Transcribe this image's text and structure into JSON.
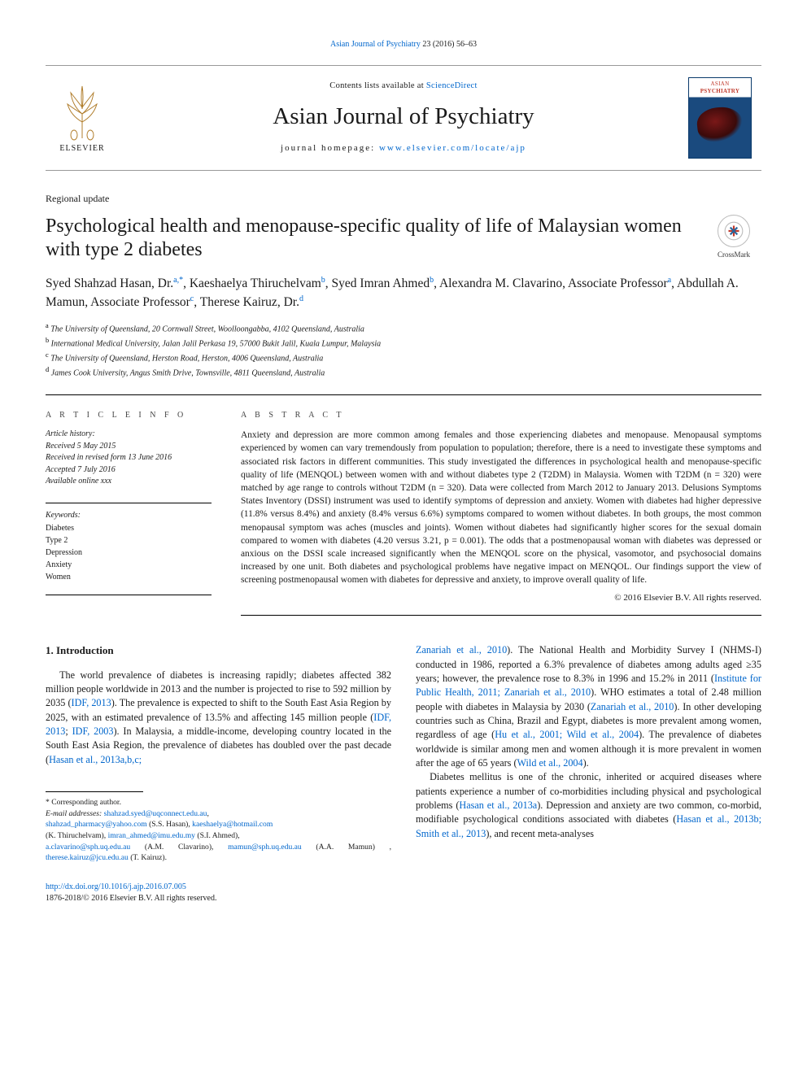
{
  "top_header_link": {
    "journal_short": "Asian Journal of Psychiatry",
    "ref": " 23 (2016) 56–63"
  },
  "masthead": {
    "contents_line_pre": "Contents lists available at ",
    "contents_link": "ScienceDirect",
    "journal_name": "Asian Journal of Psychiatry",
    "homepage_pre": "journal homepage: ",
    "homepage_link": "www.elsevier.com/locate/ajp",
    "elsevier_label": "ELSEVIER",
    "cover_brand": "ASIAN",
    "cover_brand2": "PSYCHIATRY"
  },
  "crossmark_label": "CrossMark",
  "section_label": "Regional update",
  "title": "Psychological health and menopause-specific quality of life of Malaysian women with type 2 diabetes",
  "authors_html": "Syed Shahzad Hasan, Dr.<sup>a,*</sup>, Kaeshaelya Thiruchelvam<sup>b</sup>, Syed Imran Ahmed<sup>b</sup>, Alexandra M. Clavarino, Associate Professor<sup>a</sup>, Abdullah A. Mamun, Associate Professor<sup>c</sup>, Therese Kairuz, Dr.<sup>d</sup>",
  "affiliations": [
    "a The University of Queensland, 20 Cornwall Street, Woolloongabba, 4102 Queensland, Australia",
    "b International Medical University, Jalan Jalil Perkasa 19, 57000 Bukit Jalil, Kuala Lumpur, Malaysia",
    "c The University of Queensland, Herston Road, Herston, 4006 Queensland, Australia",
    "d James Cook University, Angus Smith Drive, Townsville, 4811 Queensland, Australia"
  ],
  "article_info_head": "A R T I C L E  I N F O",
  "history_head": "Article history:",
  "history": [
    "Received 5 May 2015",
    "Received in revised form 13 June 2016",
    "Accepted 7 July 2016",
    "Available online xxx"
  ],
  "keywords_head": "Keywords:",
  "keywords": [
    "Diabetes",
    "Type 2",
    "Depression",
    "Anxiety",
    "Women"
  ],
  "abstract_head": "A B S T R A C T",
  "abstract": "Anxiety and depression are more common among females and those experiencing diabetes and menopause. Menopausal symptoms experienced by women can vary tremendously from population to population; therefore, there is a need to investigate these symptoms and associated risk factors in different communities. This study investigated the differences in psychological health and menopause-specific quality of life (MENQOL) between women with and without diabetes type 2 (T2DM) in Malaysia. Women with T2DM (n = 320) were matched by age range to controls without T2DM (n = 320). Data were collected from March 2012 to January 2013. Delusions Symptoms States Inventory (DSSI) instrument was used to identify symptoms of depression and anxiety. Women with diabetes had higher depressive (11.8% versus 8.4%) and anxiety (8.4% versus 6.6%) symptoms compared to women without diabetes. In both groups, the most common menopausal symptom was aches (muscles and joints). Women without diabetes had significantly higher scores for the sexual domain compared to women with diabetes (4.20 versus 3.21, p = 0.001). The odds that a postmenopausal woman with diabetes was depressed or anxious on the DSSI scale increased significantly when the MENQOL score on the physical, vasomotor, and psychosocial domains increased by one unit. Both diabetes and psychological problems have negative impact on MENQOL. Our findings support the view of screening postmenopausal women with diabetes for depressive and anxiety, to improve overall quality of life.",
  "copyright": "© 2016 Elsevier B.V. All rights reserved.",
  "intro_head": "1. Introduction",
  "intro_p1a": "The world prevalence of diabetes is increasing rapidly; diabetes affected 382 million people worldwide in 2013 and the number is projected to rise to 592 million by 2035 (",
  "intro_p1_l1": "IDF, 2013",
  "intro_p1b": "). The prevalence is expected to shift to the South East Asia Region by 2025, with an estimated prevalence of 13.5% and affecting 145 million people (",
  "intro_p1_l2": "IDF, 2013",
  "intro_p1c": "; ",
  "intro_p1_l3": "IDF, 2003",
  "intro_p1d": "). In Malaysia, a middle-income, developing country located in the South East Asia Region, the prevalence of diabetes has doubled over the past decade (",
  "intro_p1_l4": "Hasan et al., 2013a,b,c;",
  "intro_p2_l0": "Zanariah et al., 2010",
  "intro_p2a": "). The National Health and Morbidity Survey I (NHMS-I) conducted in 1986, reported a 6.3% prevalence of diabetes among adults aged ≥35 years; however, the prevalence rose to 8.3% in 1996 and 15.2% in 2011 (",
  "intro_p2_l1": "Institute for Public Health, 2011; Zanariah et al., 2010",
  "intro_p2b": "). WHO estimates a total of 2.48 million people with diabetes in Malaysia by 2030 (",
  "intro_p2_l2": "Zanariah et al., 2010",
  "intro_p2c": "). In other developing countries such as China, Brazil and Egypt, diabetes is more prevalent among women, regardless of age (",
  "intro_p2_l3": "Hu et al., 2001; Wild et al., 2004",
  "intro_p2d": "). The prevalence of diabetes worldwide is similar among men and women although it is more prevalent in women after the age of 65 years (",
  "intro_p2_l4": "Wild et al., 2004",
  "intro_p2e": ").",
  "intro_p3a": "Diabetes mellitus is one of the chronic, inherited or acquired diseases where patients experience a number of co-morbidities including physical and psychological problems (",
  "intro_p3_l1": "Hasan et al., 2013a",
  "intro_p3b": "). Depression and anxiety are two common, co-morbid, modifiable psychological conditions associated with diabetes (",
  "intro_p3_l2": "Hasan et al., 2013b; Smith et al., 2013",
  "intro_p3c": "), and recent meta-analyses",
  "footnotes": {
    "corr": "* Corresponding author.",
    "email_label": "E-mail addresses: ",
    "emails": [
      {
        "addr": "shahzad.syed@uqconnect.edu.au",
        "tail": ","
      },
      {
        "addr": "shahzad_pharmacy@yahoo.com",
        "tail": " (S.S. Hasan), "
      },
      {
        "addr": "kaeshaelya@hotmail.com",
        "tail": ""
      }
    ],
    "line2_tail": "(K. Thiruchelvam), ",
    "line2b_addr": "imran_ahmed@imu.edu.my",
    "line2b_tail": " (S.I. Ahmed),",
    "line3a_addr": "a.clavarino@sph.uq.edu.au",
    "line3a_tail": " (A.M. Clavarino), ",
    "line3b_addr": "mamun@sph.uq.edu.au",
    "line3b_tail": " (A.A. Mamun) , ",
    "line3c_addr": "therese.kairuz@jcu.edu.au",
    "line3c_tail": " (T. Kairuz)."
  },
  "footer": {
    "doi": "http://dx.doi.org/10.1016/j.ajp.2016.07.005",
    "issn_line": "1876-2018/© 2016 Elsevier B.V. All rights reserved."
  },
  "colors": {
    "link": "#0066cc",
    "text": "#1a1a1a",
    "cover_bg": "#1a4a7e",
    "cover_title": "#c0392b"
  }
}
